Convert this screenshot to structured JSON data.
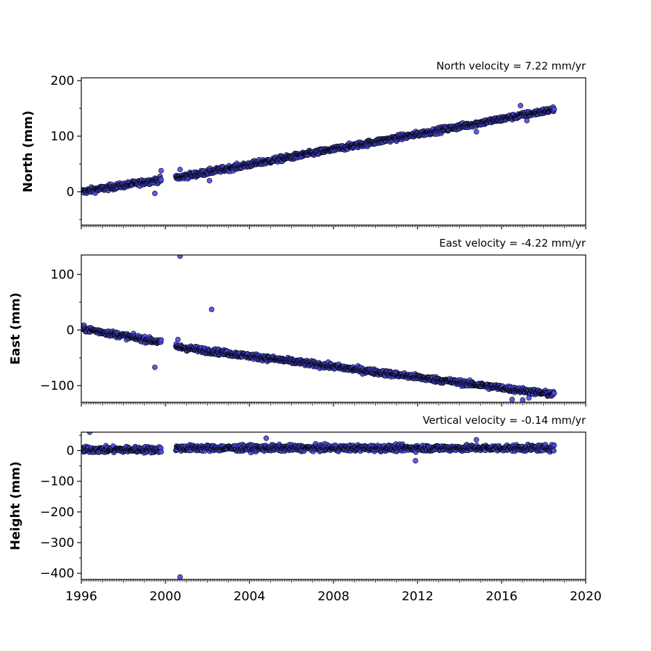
{
  "chart_data": [
    {
      "type": "scatter",
      "title": "North velocity = 7.22 mm/yr",
      "ylabel": "North (mm)",
      "xlabel": "",
      "xlim": [
        1996,
        2020
      ],
      "ylim": [
        -60,
        205
      ],
      "yticks": [
        0,
        100,
        200
      ],
      "xticks": [],
      "marker_color": "#4a4ae6",
      "edge_color": "#000000",
      "segments": [
        {
          "x0": 1996.0,
          "y0": 0,
          "x1": 1999.8,
          "y1": 22
        },
        {
          "x0": 2000.5,
          "y0": 25,
          "x1": 2018.5,
          "y1": 148
        }
      ],
      "outliers": [
        {
          "x": 1999.5,
          "y": -3
        },
        {
          "x": 1999.8,
          "y": 38
        },
        {
          "x": 2002.1,
          "y": 20
        },
        {
          "x": 2000.7,
          "y": 40
        },
        {
          "x": 2014.8,
          "y": 108
        },
        {
          "x": 2016.9,
          "y": 155
        },
        {
          "x": 2017.2,
          "y": 128
        }
      ]
    },
    {
      "type": "scatter",
      "title": "East velocity = -4.22 mm/yr",
      "ylabel": "East (mm)",
      "xlabel": "",
      "xlim": [
        1996,
        2020
      ],
      "ylim": [
        -130,
        135
      ],
      "yticks": [
        -100,
        0,
        100
      ],
      "xticks": [],
      "marker_color": "#4a4ae6",
      "edge_color": "#000000",
      "segments": [
        {
          "x0": 1996.0,
          "y0": 3,
          "x1": 1999.8,
          "y1": -22
        },
        {
          "x0": 2000.5,
          "y0": -30,
          "x1": 2018.5,
          "y1": -116
        }
      ],
      "outliers": [
        {
          "x": 2000.7,
          "y": 133
        },
        {
          "x": 2002.2,
          "y": 37
        },
        {
          "x": 1999.5,
          "y": -67
        },
        {
          "x": 2000.6,
          "y": -17
        },
        {
          "x": 2016.5,
          "y": -125
        },
        {
          "x": 2017.0,
          "y": -126
        },
        {
          "x": 2017.3,
          "y": -122
        }
      ]
    },
    {
      "type": "scatter",
      "title": "Vertical velocity = -0.14 mm/yr",
      "ylabel": "Height (mm)",
      "xlabel": "",
      "xlim": [
        1996,
        2020
      ],
      "ylim": [
        -420,
        60
      ],
      "yticks": [
        -400,
        -300,
        -200,
        -100,
        0
      ],
      "xticks": [
        1996,
        2000,
        2004,
        2008,
        2012,
        2016,
        2020
      ],
      "marker_color": "#4a4ae6",
      "edge_color": "#000000",
      "segments": [
        {
          "x0": 1996.0,
          "y0": 3,
          "x1": 1999.8,
          "y1": 3
        },
        {
          "x0": 2000.5,
          "y0": 8,
          "x1": 2018.5,
          "y1": 8
        }
      ],
      "outliers": [
        {
          "x": 1996.4,
          "y": 60
        },
        {
          "x": 2004.8,
          "y": 40
        },
        {
          "x": 2011.9,
          "y": -33
        },
        {
          "x": 2000.7,
          "y": -412
        },
        {
          "x": 2014.8,
          "y": 35
        }
      ]
    }
  ]
}
